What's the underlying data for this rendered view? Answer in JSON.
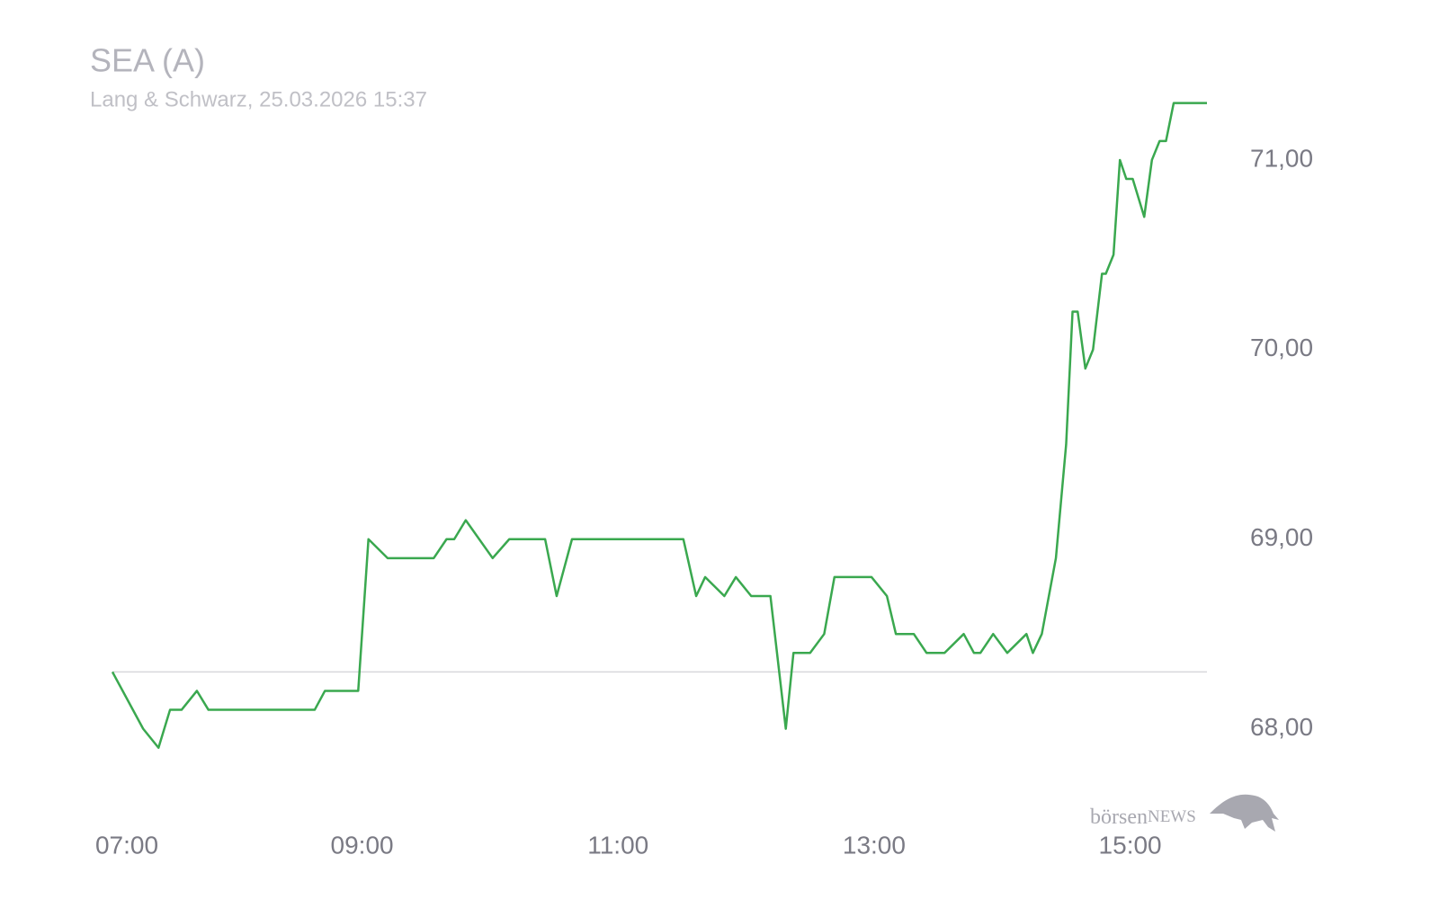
{
  "chart_data": {
    "type": "line",
    "title": "SEA (A)",
    "subtitle": "Lang & Schwarz, 25.03.2026 15:37",
    "logo": [
      "börsen",
      "NEWS"
    ],
    "x": [
      7.05,
      7.29,
      7.41,
      7.5,
      7.59,
      7.71,
      7.8,
      8.63,
      8.71,
      8.97,
      9.05,
      9.2,
      9.56,
      9.66,
      9.72,
      9.81,
      10.02,
      10.15,
      10.43,
      10.52,
      10.64,
      11.51,
      11.61,
      11.68,
      11.83,
      11.92,
      12.04,
      12.19,
      12.31,
      12.37,
      12.5,
      12.61,
      12.69,
      12.98,
      13.1,
      13.17,
      13.31,
      13.41,
      13.55,
      13.7,
      13.78,
      13.83,
      13.93,
      14.04,
      14.19,
      14.24,
      14.31,
      14.42,
      14.5,
      14.55,
      14.59,
      14.65,
      14.71,
      14.78,
      14.81,
      14.87,
      14.92,
      14.97,
      15.02,
      15.11,
      15.17,
      15.23,
      15.28,
      15.34,
      15.6
    ],
    "series": [
      {
        "color": "#3aa84f",
        "values": [
          68.3,
          68.0,
          67.9,
          68.1,
          68.1,
          68.2,
          68.1,
          68.1,
          68.2,
          68.2,
          69.0,
          68.9,
          68.9,
          69.0,
          69.0,
          69.1,
          68.9,
          69.0,
          69.0,
          68.7,
          69.0,
          69.0,
          68.7,
          68.8,
          68.7,
          68.8,
          68.7,
          68.7,
          68.0,
          68.4,
          68.4,
          68.5,
          68.8,
          68.8,
          68.7,
          68.5,
          68.5,
          68.4,
          68.4,
          68.5,
          68.4,
          68.4,
          68.5,
          68.4,
          68.5,
          68.4,
          68.5,
          68.9,
          69.5,
          70.2,
          70.2,
          69.9,
          70.0,
          70.4,
          70.4,
          70.5,
          71.0,
          70.9,
          70.9,
          70.7,
          71.0,
          71.1,
          71.1,
          71.3,
          71.3
        ]
      }
    ],
    "reference_line": 68.3,
    "xlim": [
      7.05,
      15.6
    ],
    "xticks": [
      {
        "value": 7,
        "label": "07:00"
      },
      {
        "value": 9,
        "label": "09:00"
      },
      {
        "value": 11,
        "label": "11:00"
      },
      {
        "value": 13,
        "label": "13:00"
      },
      {
        "value": 15,
        "label": "15:00"
      }
    ],
    "ylim": [
      67.6,
      71.5
    ],
    "yticks": [
      {
        "value": 68,
        "label": "68,00"
      },
      {
        "value": 69,
        "label": "69,00"
      },
      {
        "value": 70,
        "label": "70,00"
      },
      {
        "value": 71,
        "label": "71,00"
      }
    ]
  }
}
